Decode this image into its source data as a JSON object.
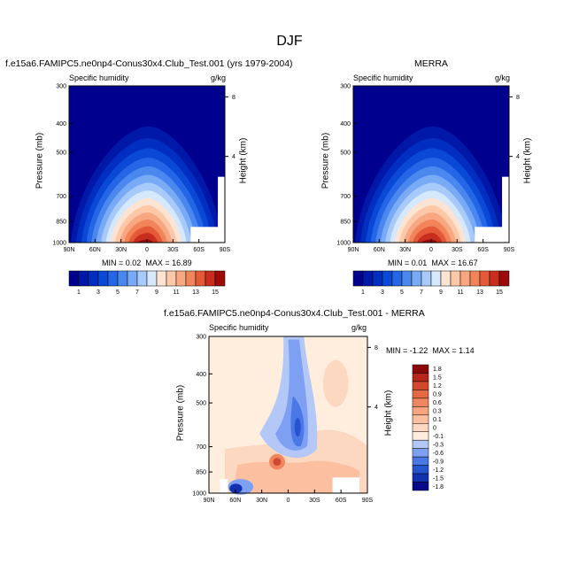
{
  "title": "DJF",
  "colors": {
    "abs_scale": [
      "#00008f",
      "#0018a8",
      "#002ec0",
      "#0a48d6",
      "#2466e6",
      "#4a88f0",
      "#78aaf6",
      "#a8cafa",
      "#d6e8fc",
      "#fde4d2",
      "#fcc8a8",
      "#f8a880",
      "#f2845a",
      "#e45a38",
      "#c82e1e",
      "#9c0a0a"
    ],
    "diff_scale": [
      "#08088a",
      "#1230b0",
      "#2454d0",
      "#4a78e6",
      "#7ea0f2",
      "#b4c8f8",
      "#ffeede",
      "#fdd8c0",
      "#fcc0a0",
      "#f8a47e",
      "#f08660",
      "#e46a46",
      "#d2482e",
      "#b6261a",
      "#8c0808"
    ]
  },
  "chart_data": [
    {
      "type": "heatmap",
      "title": "f.e15a6.FAMIPC5.ne0np4-Conus30x4.Club_Test.001 (yrs 1979-2004)",
      "variable": "Specific humidity",
      "units": "g/kg",
      "ylabel": "Pressure (mb)",
      "y2label": "Height (km)",
      "xticks": [
        "90N",
        "60N",
        "30N",
        "0",
        "30S",
        "60S",
        "90S"
      ],
      "yticks": [
        300,
        400,
        500,
        700,
        850,
        1000
      ],
      "y2ticks": [
        "8",
        "4"
      ],
      "min_label": "MIN =",
      "min": "0.02",
      "max_label": "MAX =",
      "max": "16.89",
      "scale": "log-pressure",
      "ylim": [
        1000,
        300
      ],
      "xlim": [
        90,
        -90
      ]
    },
    {
      "type": "heatmap",
      "title": "MERRA",
      "variable": "Specific humidity",
      "units": "g/kg",
      "ylabel": "Pressure (mb)",
      "y2label": "Height (km)",
      "xticks": [
        "90N",
        "60N",
        "30N",
        "0",
        "30S",
        "60S",
        "90S"
      ],
      "yticks": [
        300,
        400,
        500,
        700,
        850,
        1000
      ],
      "y2ticks": [
        "8",
        "4"
      ],
      "min_label": "MIN =",
      "min": "0.01",
      "max_label": "MAX =",
      "max": "16.67",
      "scale": "log-pressure",
      "ylim": [
        1000,
        300
      ],
      "xlim": [
        90,
        -90
      ]
    },
    {
      "type": "heatmap",
      "title": "f.e15a6.FAMIPC5.ne0np4-Conus30x4.Club_Test.001 - MERRA",
      "variable": "Specific humidity",
      "units": "g/kg",
      "ylabel": "Pressure (mb)",
      "y2label": "Height (km)",
      "xticks": [
        "90N",
        "60N",
        "30N",
        "0",
        "30S",
        "60S",
        "90S"
      ],
      "yticks": [
        300,
        400,
        500,
        700,
        850,
        1000
      ],
      "y2ticks": [
        "8",
        "4"
      ],
      "min_label": "MIN =",
      "min": "-1.22",
      "max_label": "MAX =",
      "max": "1.14",
      "scale": "log-pressure",
      "ylim": [
        1000,
        300
      ],
      "xlim": [
        90,
        -90
      ]
    }
  ],
  "colorbars": {
    "abs_labels": [
      "1",
      "3",
      "5",
      "7",
      "9",
      "11",
      "13",
      "15"
    ],
    "diff_labels": [
      "1.8",
      "1.5",
      "1.2",
      "0.9",
      "0.6",
      "0.3",
      "0.1",
      "0",
      "-0.1",
      "-0.3",
      "-0.6",
      "-0.9",
      "-1.2",
      "-1.5",
      "-1.8"
    ]
  }
}
